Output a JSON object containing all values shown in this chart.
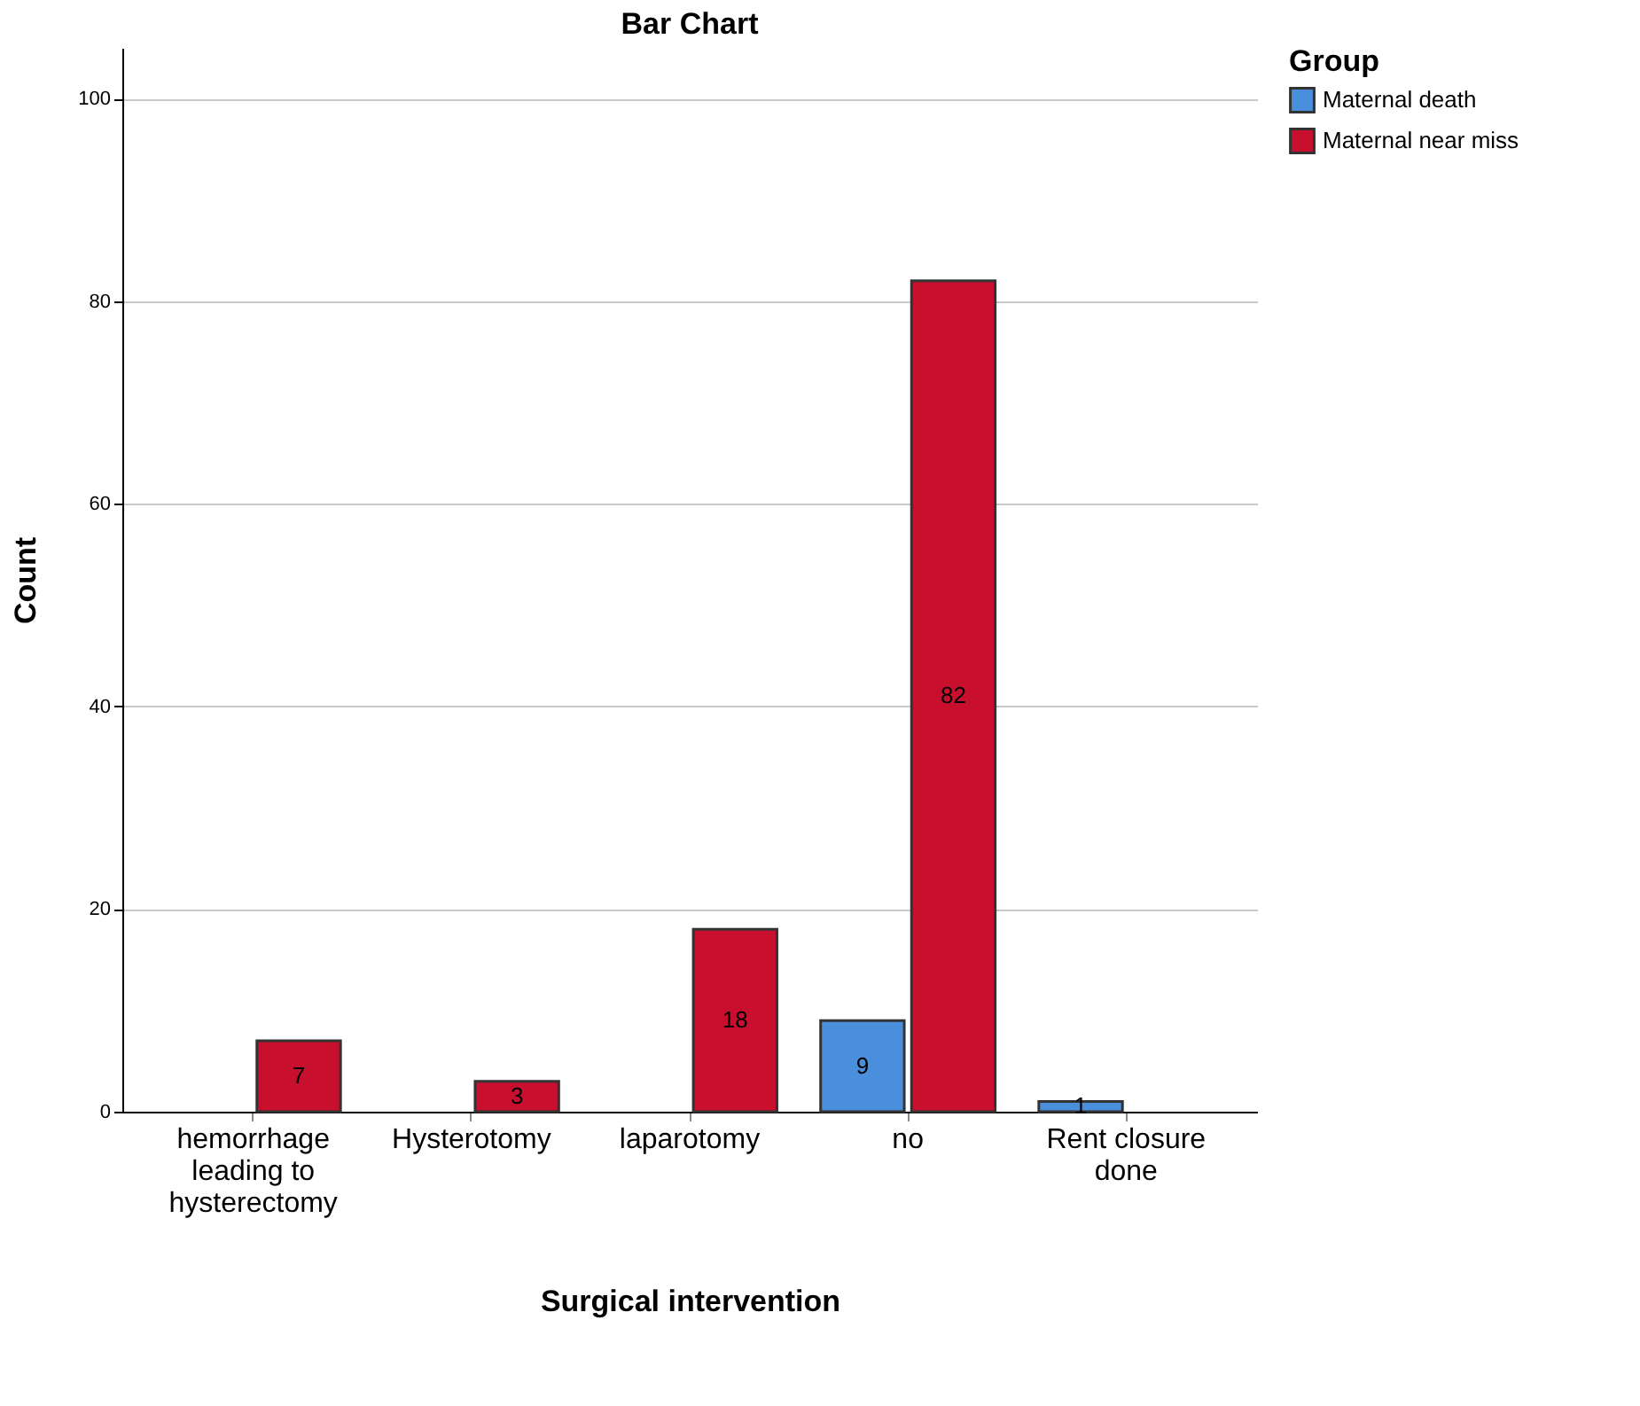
{
  "chart_data": {
    "type": "bar",
    "title": "Bar Chart",
    "xlabel": "Surgical intervention",
    "ylabel": "Count",
    "legend_title": "Group",
    "categories": [
      "hemorrhage leading to hysterectomy",
      "Hysterotomy",
      "laparotomy",
      "no",
      "Rent closure done"
    ],
    "series": [
      {
        "name": "Maternal death",
        "color": "#4a8fdc",
        "values": [
          null,
          null,
          null,
          9,
          1
        ]
      },
      {
        "name": "Maternal near miss",
        "color": "#c8102e",
        "values": [
          7,
          3,
          18,
          82,
          null
        ]
      }
    ],
    "ylim": [
      0,
      105
    ],
    "yticks": [
      0,
      20,
      40,
      60,
      80,
      100
    ],
    "grid": "y",
    "legend": "top right",
    "data_labels": true
  }
}
